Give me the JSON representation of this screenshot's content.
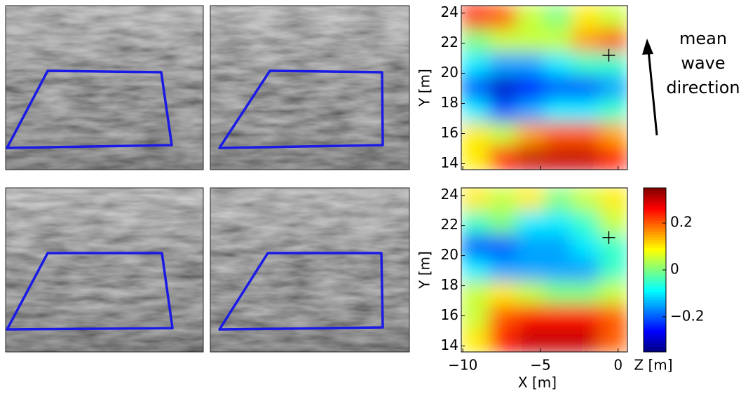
{
  "chart_data": [
    {
      "type": "heatmap",
      "ylabel": "Y [m]",
      "xlim": [
        -10.1,
        0.6
      ],
      "ylim": [
        13.6,
        24.5
      ],
      "xticks": [
        {
          "value": -10,
          "label": "−10"
        },
        {
          "value": -5,
          "label": "−5"
        },
        0
      ],
      "yticks": [
        14,
        16,
        18,
        20,
        22,
        24
      ],
      "z": [
        [
          0.25,
          0.2,
          0.05,
          0.0,
          0.1,
          0.05
        ],
        [
          0.0,
          0.05,
          0.05,
          0.05,
          0.15,
          0.2
        ],
        [
          -0.1,
          -0.15,
          -0.15,
          -0.1,
          -0.05,
          -0.05
        ],
        [
          -0.2,
          -0.3,
          -0.25,
          -0.2,
          -0.2,
          -0.15
        ],
        [
          -0.1,
          -0.2,
          -0.15,
          -0.1,
          -0.1,
          -0.05
        ],
        [
          0.1,
          0.05,
          0.15,
          0.2,
          0.2,
          0.15
        ],
        [
          0.1,
          0.25,
          0.3,
          0.3,
          0.3,
          0.25
        ]
      ],
      "points": {
        "x": [
          -0.6
        ],
        "y": [
          21.2
        ]
      },
      "annotations": [
        "mean",
        "wave",
        "direction"
      ]
    },
    {
      "type": "heatmap",
      "xlabel": "X [m]",
      "ylabel": "Y [m]",
      "xlim": [
        -10.1,
        0.6
      ],
      "ylim": [
        13.6,
        24.5
      ],
      "xticks": [
        {
          "value": -10,
          "label": "−10"
        },
        {
          "value": -5,
          "label": "−5"
        },
        0
      ],
      "yticks": [
        14,
        16,
        18,
        20,
        22,
        24
      ],
      "z": [
        [
          0.1,
          0.05,
          0.1,
          0.0,
          0.05,
          0.1
        ],
        [
          -0.05,
          0.0,
          -0.1,
          -0.1,
          -0.05,
          0.05
        ],
        [
          -0.2,
          -0.2,
          -0.15,
          -0.15,
          -0.1,
          -0.05
        ],
        [
          -0.1,
          -0.15,
          -0.15,
          -0.15,
          -0.15,
          -0.05
        ],
        [
          0.05,
          0.1,
          0.05,
          0.0,
          0.0,
          0.05
        ],
        [
          0.05,
          0.2,
          0.25,
          0.25,
          0.25,
          0.2
        ],
        [
          0.1,
          0.25,
          0.3,
          0.3,
          0.3,
          0.2
        ]
      ],
      "points": {
        "x": [
          -0.6
        ],
        "y": [
          21.2
        ]
      },
      "colorbar": {
        "zlim": [
          -0.35,
          0.35
        ],
        "ticks": [
          0.2,
          0,
          {
            "value": -0.2,
            "label": "−0.2"
          }
        ],
        "label": "Z [m]"
      }
    }
  ]
}
